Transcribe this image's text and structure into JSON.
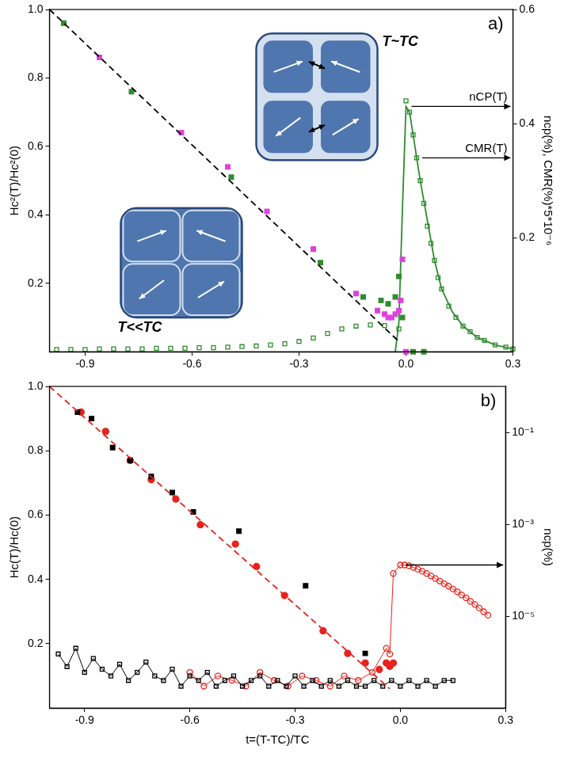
{
  "chart_data": [
    {
      "type": "scatter",
      "y_label": "Hc²(T)/Hc²(0)",
      "y2_label": "ncp(%), CMR(%)*5*10⁻⁶",
      "xlim": [
        -1,
        0.3
      ],
      "xticks": [
        -0.9,
        -0.6,
        -0.3,
        {
          "value": 0,
          "label": "0.0"
        },
        0.3
      ],
      "ylim": [
        0,
        1
      ],
      "yticks": [
        0.2,
        0.4,
        0.6,
        0.8,
        {
          "value": 1,
          "label": "1.0"
        }
      ],
      "y2lim": [
        0,
        0.6
      ],
      "y2ticks": [
        0.2,
        0.4,
        0.6
      ],
      "grid": false,
      "annotations": [
        "a)",
        "T~TC",
        "T<<TC"
      ],
      "series": [
        {
          "color": "#000000",
          "marker": "none",
          "line_style": "dashed",
          "x": [
            -1,
            -0.02
          ],
          "values": [
            1,
            0.03
          ]
        },
        {
          "color": "#2e8b2e",
          "marker": "square",
          "line_style": "none",
          "x": [
            -0.96,
            -0.77,
            -0.49,
            -0.24,
            -0.12,
            -0.07,
            -0.05,
            -0.03,
            -0.02,
            -0.01,
            0.02,
            0.05
          ],
          "values": [
            0.96,
            0.76,
            0.51,
            0.26,
            0.16,
            0.15,
            0.14,
            0.16,
            0.22,
            0.1,
            0,
            0
          ]
        },
        {
          "color": "#e040e0",
          "marker": "square",
          "line_style": "none",
          "x": [
            -0.86,
            -0.63,
            -0.5,
            -0.39,
            -0.26,
            -0.14,
            -0.08,
            -0.06,
            -0.05,
            -0.04,
            -0.03,
            -0.02,
            -0.015,
            -0.01,
            0
          ],
          "values": [
            0.86,
            0.64,
            0.54,
            0.41,
            0.3,
            0.17,
            0.12,
            0.11,
            0.1,
            0.1,
            0.11,
            0.12,
            0.15,
            0.27,
            0
          ]
        },
        {
          "name": "CMR(T)",
          "color": "#2e8b2e",
          "marker": "square-open",
          "line_style": "none",
          "axis": "y2",
          "x": [
            -0.98,
            -0.94,
            -0.9,
            -0.86,
            -0.82,
            -0.78,
            -0.74,
            -0.7,
            -0.66,
            -0.62,
            -0.58,
            -0.54,
            -0.5,
            -0.46,
            -0.42,
            -0.38,
            -0.34,
            -0.3,
            -0.26,
            -0.22,
            -0.18,
            -0.14,
            -0.1,
            -0.06,
            -0.02,
            0,
            0.01,
            0.02,
            0.03,
            0.04,
            0.05,
            0.06,
            0.07,
            0.08,
            0.09,
            0.1,
            0.12,
            0.14,
            0.16,
            0.18,
            0.2,
            0.22,
            0.25,
            0.28,
            0.3
          ],
          "values": [
            0.004,
            0.004,
            0.004,
            0.005,
            0.005,
            0.005,
            0.005,
            0.006,
            0.006,
            0.006,
            0.007,
            0.007,
            0.008,
            0.009,
            0.01,
            0.012,
            0.014,
            0.018,
            0.024,
            0.032,
            0.04,
            0.045,
            0.047,
            0.046,
            0.04,
            0.44,
            0.42,
            0.38,
            0.34,
            0.3,
            0.26,
            0.22,
            0.19,
            0.16,
            0.13,
            0.11,
            0.08,
            0.06,
            0.045,
            0.035,
            0.025,
            0.02,
            0.012,
            0.008,
            0.005
          ]
        },
        {
          "name": "nCP(T)",
          "color": "#2e8b2e",
          "marker": "none",
          "line_style": "solid",
          "axis": "y2",
          "x": [
            -0.03,
            -0.02,
            -0.01,
            0,
            0.01,
            0.02,
            0.04,
            0.06,
            0.08,
            0.1,
            0.13,
            0.16,
            0.2,
            0.25,
            0.3
          ],
          "values": [
            0,
            0.05,
            0.25,
            0.43,
            0.42,
            0.38,
            0.3,
            0.23,
            0.16,
            0.11,
            0.07,
            0.045,
            0.025,
            0.012,
            0.005
          ]
        }
      ]
    },
    {
      "type": "scatter",
      "x_label": "t=(T-TC)/TC",
      "y_label": "Hc(T)/Hc(0)",
      "y2_label": "ncp(%)",
      "log": "y2",
      "xlim": [
        -1,
        0.3
      ],
      "xticks": [
        -0.9,
        -0.6,
        -0.3,
        {
          "value": 0,
          "label": "0.0"
        },
        0.3
      ],
      "ylim": [
        0,
        1
      ],
      "yticks": [
        0.2,
        0.4,
        0.6,
        0.8,
        {
          "value": 1,
          "label": "1.0"
        }
      ],
      "y2lim": [
        1e-07,
        1
      ],
      "y2ticks": [
        {
          "value": 1e-05,
          "label": "10⁻⁵"
        },
        {
          "value": 0.001,
          "label": "10⁻³"
        },
        {
          "value": 0.1,
          "label": "10⁻¹"
        }
      ],
      "grid": false,
      "annotations": [
        "b)"
      ],
      "series": [
        {
          "color": "#e8221c",
          "marker": "none",
          "line_style": "dashed",
          "x": [
            -1,
            -0.03
          ],
          "values": [
            1,
            0.06
          ]
        },
        {
          "color": "#000000",
          "marker": "square",
          "line_style": "none",
          "x": [
            -0.92,
            -0.88,
            -0.82,
            -0.77,
            -0.71,
            -0.65,
            -0.59,
            -0.46,
            -0.27,
            -0.1
          ],
          "values": [
            0.92,
            0.9,
            0.81,
            0.77,
            0.72,
            0.67,
            0.61,
            0.55,
            0.38,
            0.17
          ]
        },
        {
          "color": "#e8221c",
          "marker": "circle",
          "line_style": "none",
          "x": [
            -0.91,
            -0.84,
            -0.77,
            -0.71,
            -0.64,
            -0.57,
            -0.47,
            -0.41,
            -0.33,
            -0.22,
            -0.15,
            -0.1,
            -0.06,
            -0.04,
            -0.03,
            -0.02
          ],
          "values": [
            0.92,
            0.86,
            0.77,
            0.71,
            0.65,
            0.57,
            0.51,
            0.44,
            0.35,
            0.24,
            0.17,
            0.14,
            0.12,
            0.14,
            0.13,
            0.14
          ]
        },
        {
          "color": "#000000",
          "marker": "square-open",
          "line_style": "solid",
          "axis": "y2",
          "x": [
            -0.975,
            -0.95,
            -0.925,
            -0.9,
            -0.875,
            -0.85,
            -0.825,
            -0.8,
            -0.775,
            -0.75,
            -0.725,
            -0.7,
            -0.675,
            -0.65,
            -0.625,
            -0.6,
            -0.575,
            -0.55,
            -0.525,
            -0.5,
            -0.475,
            -0.45,
            -0.425,
            -0.4,
            -0.375,
            -0.35,
            -0.325,
            -0.3,
            -0.275,
            -0.25,
            -0.225,
            -0.2,
            -0.175,
            -0.15,
            -0.125,
            -0.1,
            -0.075,
            -0.05,
            -0.025,
            0,
            0.025,
            0.05,
            0.075,
            0.1,
            0.125,
            0.15
          ],
          "values": [
            1.5e-06,
            8e-07,
            2e-06,
            6e-07,
            1.2e-06,
            7e-07,
            5e-07,
            9e-07,
            4e-07,
            6e-07,
            1e-06,
            5e-07,
            4e-07,
            7e-07,
            3e-07,
            5e-07,
            4e-07,
            6e-07,
            3e-07,
            4e-07,
            5e-07,
            3e-07,
            4e-07,
            5e-07,
            3e-07,
            4e-07,
            3e-07,
            5e-07,
            3e-07,
            4e-07,
            3e-07,
            4e-07,
            3e-07,
            4e-07,
            3e-07,
            3e-07,
            4e-07,
            3e-07,
            4e-07,
            3e-07,
            4e-07,
            3e-07,
            4e-07,
            3e-07,
            4e-07,
            4e-07
          ]
        },
        {
          "color": "#e8221c",
          "marker": "circle-open",
          "line_style": "solid",
          "axis": "y2",
          "x": [
            -0.6,
            -0.56,
            -0.52,
            -0.48,
            -0.44,
            -0.4,
            -0.36,
            -0.32,
            -0.28,
            -0.24,
            -0.2,
            -0.16,
            -0.12,
            -0.08,
            -0.04,
            -0.03,
            -0.02,
            0,
            0.0125,
            0.025,
            0.0375,
            0.05,
            0.0625,
            0.075,
            0.0875,
            0.1,
            0.1125,
            0.125,
            0.1375,
            0.15,
            0.1625,
            0.175,
            0.1875,
            0.2,
            0.2125,
            0.225,
            0.2375,
            0.25
          ],
          "values": [
            6e-07,
            3e-07,
            5e-07,
            4e-07,
            3e-07,
            6e-07,
            4e-07,
            3e-07,
            5e-07,
            4e-07,
            3e-07,
            5e-07,
            4e-07,
            6e-07,
            2e-06,
            1.5e-06,
            8.5e-05,
            0.00013,
            0.00013,
            0.000125,
            0.000115,
            0.000105,
            9.5e-05,
            8.5e-05,
            7.5e-05,
            6.6e-05,
            5.8e-05,
            5.1e-05,
            4.5e-05,
            3.9e-05,
            3.4e-05,
            2.9e-05,
            2.5e-05,
            2.1e-05,
            1.8e-05,
            1.5e-05,
            1.25e-05,
            1.05e-05
          ]
        }
      ]
    }
  ]
}
